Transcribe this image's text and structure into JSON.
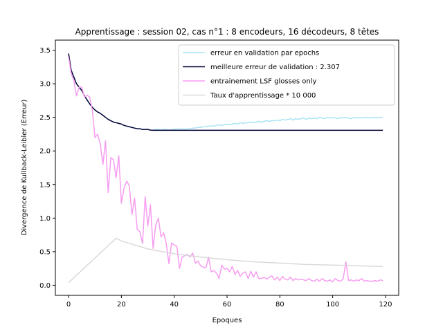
{
  "chart_data": {
    "type": "line",
    "title": "Apprentissage : session 02, cas n°1 : 8 encodeurs, 16 décodeurs, 8 têtes",
    "xlabel": "Epoques",
    "ylabel": "Divergence de Kullback-Leibler (Erreur)",
    "xlim": [
      -5,
      125
    ],
    "ylim": [
      -0.15,
      3.65
    ],
    "xticks": [
      0,
      20,
      40,
      60,
      80,
      100,
      120
    ],
    "yticks": [
      0.0,
      0.5,
      1.0,
      1.5,
      2.0,
      2.5,
      3.0,
      3.5
    ],
    "xtick_labels": [
      "0",
      "20",
      "40",
      "60",
      "80",
      "100",
      "120"
    ],
    "ytick_labels": [
      "0.0",
      "0.5",
      "1.0",
      "1.5",
      "2.0",
      "2.5",
      "3.0",
      "3.5"
    ],
    "grid": false,
    "legend_position": "top-right",
    "series": [
      {
        "name": "erreur en validation par epochs",
        "color": "#a8e4f4",
        "points": [
          [
            0,
            3.45
          ],
          [
            1,
            3.2
          ],
          [
            2,
            3.1
          ],
          [
            3,
            3.0
          ],
          [
            4,
            2.95
          ],
          [
            5,
            2.9
          ],
          [
            6,
            2.82
          ],
          [
            7,
            2.76
          ],
          [
            8,
            2.7
          ],
          [
            9,
            2.65
          ],
          [
            10,
            2.61
          ],
          [
            11,
            2.58
          ],
          [
            12,
            2.56
          ],
          [
            13,
            2.53
          ],
          [
            14,
            2.5
          ],
          [
            15,
            2.47
          ],
          [
            16,
            2.45
          ],
          [
            17,
            2.43
          ],
          [
            18,
            2.42
          ],
          [
            19,
            2.41
          ],
          [
            20,
            2.4
          ],
          [
            21,
            2.38
          ],
          [
            22,
            2.37
          ],
          [
            23,
            2.36
          ],
          [
            24,
            2.35
          ],
          [
            25,
            2.34
          ],
          [
            26,
            2.33
          ],
          [
            27,
            2.33
          ],
          [
            28,
            2.32
          ],
          [
            29,
            2.32
          ],
          [
            30,
            2.32
          ],
          [
            31,
            2.31
          ],
          [
            32,
            2.31
          ],
          [
            33,
            2.32
          ],
          [
            34,
            2.32
          ],
          [
            35,
            2.31
          ],
          [
            36,
            2.32
          ],
          [
            37,
            2.32
          ],
          [
            38,
            2.31
          ],
          [
            39,
            2.32
          ],
          [
            40,
            2.32
          ],
          [
            41,
            2.33
          ],
          [
            42,
            2.32
          ],
          [
            43,
            2.33
          ],
          [
            44,
            2.32
          ],
          [
            45,
            2.33
          ],
          [
            46,
            2.33
          ],
          [
            47,
            2.34
          ],
          [
            48,
            2.34
          ],
          [
            49,
            2.35
          ],
          [
            50,
            2.35
          ],
          [
            51,
            2.36
          ],
          [
            52,
            2.36
          ],
          [
            53,
            2.37
          ],
          [
            54,
            2.37
          ],
          [
            55,
            2.37
          ],
          [
            56,
            2.38
          ],
          [
            57,
            2.39
          ],
          [
            58,
            2.38
          ],
          [
            59,
            2.39
          ],
          [
            60,
            2.4
          ],
          [
            61,
            2.39
          ],
          [
            62,
            2.4
          ],
          [
            63,
            2.41
          ],
          [
            64,
            2.4
          ],
          [
            65,
            2.42
          ],
          [
            66,
            2.41
          ],
          [
            67,
            2.42
          ],
          [
            68,
            2.42
          ],
          [
            69,
            2.43
          ],
          [
            70,
            2.42
          ],
          [
            71,
            2.43
          ],
          [
            72,
            2.44
          ],
          [
            73,
            2.43
          ],
          [
            74,
            2.44
          ],
          [
            75,
            2.45
          ],
          [
            76,
            2.44
          ],
          [
            77,
            2.45
          ],
          [
            78,
            2.45
          ],
          [
            79,
            2.46
          ],
          [
            80,
            2.45
          ],
          [
            81,
            2.47
          ],
          [
            82,
            2.46
          ],
          [
            83,
            2.47
          ],
          [
            84,
            2.48
          ],
          [
            85,
            2.46
          ],
          [
            86,
            2.48
          ],
          [
            87,
            2.47
          ],
          [
            88,
            2.48
          ],
          [
            89,
            2.49
          ],
          [
            90,
            2.47
          ],
          [
            91,
            2.49
          ],
          [
            92,
            2.48
          ],
          [
            93,
            2.49
          ],
          [
            94,
            2.48
          ],
          [
            95,
            2.5
          ],
          [
            96,
            2.49
          ],
          [
            97,
            2.48
          ],
          [
            98,
            2.5
          ],
          [
            99,
            2.49
          ],
          [
            100,
            2.5
          ],
          [
            101,
            2.49
          ],
          [
            102,
            2.48
          ],
          [
            103,
            2.5
          ],
          [
            104,
            2.49
          ],
          [
            105,
            2.5
          ],
          [
            106,
            2.49
          ],
          [
            107,
            2.48
          ],
          [
            108,
            2.5
          ],
          [
            109,
            2.49
          ],
          [
            110,
            2.5
          ],
          [
            111,
            2.49
          ],
          [
            112,
            2.5
          ],
          [
            113,
            2.5
          ],
          [
            114,
            2.49
          ],
          [
            115,
            2.5
          ],
          [
            116,
            2.5
          ],
          [
            117,
            2.49
          ],
          [
            118,
            2.5
          ],
          [
            119,
            2.5
          ]
        ]
      },
      {
        "name": "meilleure erreur de validation : 2.307",
        "color": "#000033",
        "points": [
          [
            0,
            3.45
          ],
          [
            1,
            3.2
          ],
          [
            2,
            3.1
          ],
          [
            3,
            3.0
          ],
          [
            4,
            2.95
          ],
          [
            5,
            2.9
          ],
          [
            6,
            2.82
          ],
          [
            7,
            2.76
          ],
          [
            8,
            2.7
          ],
          [
            9,
            2.65
          ],
          [
            10,
            2.61
          ],
          [
            11,
            2.58
          ],
          [
            12,
            2.56
          ],
          [
            13,
            2.53
          ],
          [
            14,
            2.5
          ],
          [
            15,
            2.47
          ],
          [
            16,
            2.45
          ],
          [
            17,
            2.43
          ],
          [
            18,
            2.42
          ],
          [
            19,
            2.41
          ],
          [
            20,
            2.4
          ],
          [
            21,
            2.38
          ],
          [
            22,
            2.37
          ],
          [
            23,
            2.36
          ],
          [
            24,
            2.35
          ],
          [
            25,
            2.34
          ],
          [
            26,
            2.33
          ],
          [
            27,
            2.33
          ],
          [
            28,
            2.32
          ],
          [
            29,
            2.32
          ],
          [
            30,
            2.32
          ],
          [
            31,
            2.31
          ],
          [
            32,
            2.307
          ],
          [
            119,
            2.307
          ]
        ]
      },
      {
        "name": "entrainement LSF glosses only",
        "color": "#f79cf0",
        "points": [
          [
            0,
            3.4
          ],
          [
            1,
            3.15
          ],
          [
            2,
            3.05
          ],
          [
            3,
            2.82
          ],
          [
            4,
            2.95
          ],
          [
            5,
            2.95
          ],
          [
            6,
            2.8
          ],
          [
            7,
            2.83
          ],
          [
            8,
            2.8
          ],
          [
            9,
            2.6
          ],
          [
            10,
            2.2
          ],
          [
            11,
            2.25
          ],
          [
            12,
            2.1
          ],
          [
            13,
            1.8
          ],
          [
            14,
            2.15
          ],
          [
            15,
            1.38
          ],
          [
            16,
            1.9
          ],
          [
            17,
            1.87
          ],
          [
            18,
            1.6
          ],
          [
            19,
            1.93
          ],
          [
            20,
            1.22
          ],
          [
            21,
            1.45
          ],
          [
            22,
            1.55
          ],
          [
            23,
            1.48
          ],
          [
            24,
            1.05
          ],
          [
            25,
            1.3
          ],
          [
            26,
            0.83
          ],
          [
            27,
            0.8
          ],
          [
            28,
            0.62
          ],
          [
            29,
            1.32
          ],
          [
            30,
            0.88
          ],
          [
            31,
            1.2
          ],
          [
            32,
            0.55
          ],
          [
            33,
            0.9
          ],
          [
            34,
            1.0
          ],
          [
            35,
            0.72
          ],
          [
            36,
            0.78
          ],
          [
            37,
            0.62
          ],
          [
            38,
            0.32
          ],
          [
            39,
            0.63
          ],
          [
            40,
            0.6
          ],
          [
            41,
            0.58
          ],
          [
            42,
            0.25
          ],
          [
            43,
            0.42
          ],
          [
            44,
            0.44
          ],
          [
            45,
            0.46
          ],
          [
            46,
            0.42
          ],
          [
            47,
            0.48
          ],
          [
            48,
            0.33
          ],
          [
            49,
            0.36
          ],
          [
            50,
            0.29
          ],
          [
            51,
            0.27
          ],
          [
            52,
            0.26
          ],
          [
            53,
            0.42
          ],
          [
            54,
            0.2
          ],
          [
            55,
            0.22
          ],
          [
            56,
            0.18
          ],
          [
            57,
            0.1
          ],
          [
            58,
            0.3
          ],
          [
            59,
            0.24
          ],
          [
            60,
            0.25
          ],
          [
            61,
            0.2
          ],
          [
            62,
            0.28
          ],
          [
            63,
            0.16
          ],
          [
            64,
            0.22
          ],
          [
            65,
            0.13
          ],
          [
            66,
            0.18
          ],
          [
            67,
            0.2
          ],
          [
            68,
            0.1
          ],
          [
            69,
            0.21
          ],
          [
            70,
            0.12
          ],
          [
            71,
            0.2
          ],
          [
            72,
            0.1
          ],
          [
            73,
            0.1
          ],
          [
            74,
            0.12
          ],
          [
            75,
            0.09
          ],
          [
            76,
            0.12
          ],
          [
            77,
            0.14
          ],
          [
            78,
            0.08
          ],
          [
            79,
            0.12
          ],
          [
            80,
            0.07
          ],
          [
            81,
            0.13
          ],
          [
            82,
            0.09
          ],
          [
            83,
            0.08
          ],
          [
            84,
            0.12
          ],
          [
            85,
            0.07
          ],
          [
            86,
            0.1
          ],
          [
            87,
            0.08
          ],
          [
            88,
            0.09
          ],
          [
            89,
            0.08
          ],
          [
            90,
            0.07
          ],
          [
            91,
            0.1
          ],
          [
            92,
            0.07
          ],
          [
            93,
            0.06
          ],
          [
            94,
            0.09
          ],
          [
            95,
            0.06
          ],
          [
            96,
            0.1
          ],
          [
            97,
            0.07
          ],
          [
            98,
            0.06
          ],
          [
            99,
            0.08
          ],
          [
            100,
            0.05
          ],
          [
            101,
            0.1
          ],
          [
            102,
            0.07
          ],
          [
            103,
            0.06
          ],
          [
            104,
            0.1
          ],
          [
            105,
            0.35
          ],
          [
            106,
            0.07
          ],
          [
            107,
            0.08
          ],
          [
            108,
            0.06
          ],
          [
            109,
            0.08
          ],
          [
            110,
            0.07
          ],
          [
            111,
            0.1
          ],
          [
            112,
            0.06
          ],
          [
            113,
            0.07
          ],
          [
            114,
            0.06
          ],
          [
            115,
            0.06
          ],
          [
            116,
            0.07
          ],
          [
            117,
            0.06
          ],
          [
            118,
            0.08
          ],
          [
            119,
            0.07
          ]
        ]
      },
      {
        "name": "Taux d'apprentissage * 10 000",
        "color": "#d9d9d9",
        "points": [
          [
            0,
            0.04
          ],
          [
            18,
            0.7
          ],
          [
            20,
            0.66
          ],
          [
            25,
            0.6
          ],
          [
            30,
            0.54
          ],
          [
            40,
            0.47
          ],
          [
            50,
            0.42
          ],
          [
            60,
            0.38
          ],
          [
            70,
            0.35
          ],
          [
            80,
            0.33
          ],
          [
            90,
            0.31
          ],
          [
            100,
            0.3
          ],
          [
            110,
            0.29
          ],
          [
            119,
            0.28
          ]
        ]
      }
    ]
  }
}
